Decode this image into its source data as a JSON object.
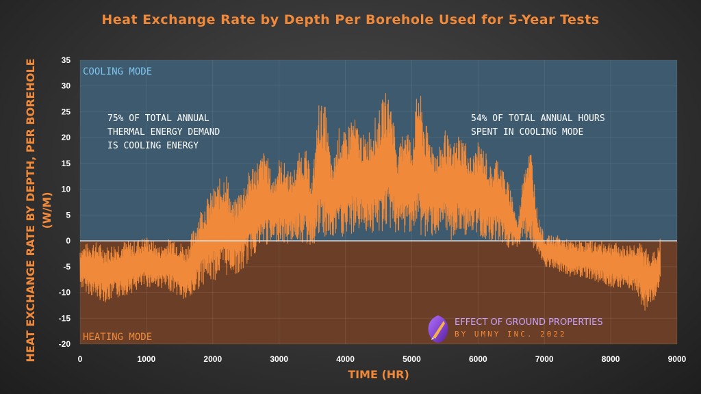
{
  "chart_data": {
    "type": "line",
    "title": "Heat Exchange Rate by Depth Per Borehole Used for 5-Year Tests",
    "xlabel": "TIME (HR)",
    "ylabel": "HEAT EXCHANGE RATE BY DEPTH, PER BOREHOLE",
    "ylabel_unit": "(W/M)",
    "xlim": [
      0,
      9000
    ],
    "ylim": [
      -20,
      35
    ],
    "xticks": [
      0,
      1000,
      2000,
      3000,
      4000,
      5000,
      6000,
      7000,
      8000,
      9000
    ],
    "yticks": [
      -20,
      -15,
      -10,
      -5,
      0,
      5,
      10,
      15,
      20,
      25,
      30,
      35
    ],
    "grid": true,
    "regions": [
      {
        "label": "COOLING MODE",
        "y_range": [
          0,
          35
        ],
        "color": "#3d5a6e"
      },
      {
        "label": "HEATING MODE",
        "y_range": [
          -20,
          0
        ],
        "color": "#6b3f27"
      }
    ],
    "annotations": [
      {
        "lines": [
          "75% OF TOTAL ANNUAL",
          "THERMAL ENERGY DEMAND",
          "IS COOLING ENERGY"
        ]
      },
      {
        "lines": [
          "54% OF TOTAL ANNUAL HOURS",
          "SPENT IN COOLING MODE"
        ]
      }
    ],
    "series": [
      {
        "color": "#f08a3a",
        "envelope_x": [
          0,
          200,
          400,
          600,
          800,
          1000,
          1200,
          1400,
          1600,
          1700,
          1800,
          1900,
          2000,
          2100,
          2200,
          2300,
          2400,
          2500,
          2600,
          2700,
          2800,
          2900,
          3000,
          3100,
          3200,
          3300,
          3400,
          3500,
          3600,
          3700,
          3800,
          3900,
          4000,
          4100,
          4200,
          4300,
          4400,
          4500,
          4600,
          4700,
          4800,
          4900,
          5000,
          5100,
          5200,
          5300,
          5400,
          5500,
          5600,
          5700,
          5800,
          5900,
          6000,
          6100,
          6200,
          6300,
          6400,
          6500,
          6600,
          6700,
          6800,
          6900,
          7000,
          7200,
          7400,
          7600,
          7800,
          8000,
          8200,
          8400,
          8500,
          8600,
          8700,
          8750
        ],
        "envelope_max": [
          -1,
          0,
          -1,
          0,
          0,
          1,
          -1,
          1,
          -1,
          2,
          6,
          8,
          10,
          12,
          14,
          7,
          10,
          12,
          15,
          16,
          18,
          12,
          16,
          15,
          13,
          17,
          18,
          12,
          27,
          26,
          14,
          22,
          21,
          25,
          22,
          20,
          23,
          25,
          29,
          27,
          17,
          24,
          19,
          31,
          23,
          20,
          17,
          22,
          18,
          21,
          20,
          16,
          19,
          18,
          14,
          17,
          13,
          10,
          3,
          16,
          18,
          5,
          1,
          1,
          0,
          0,
          0,
          0,
          -1,
          0,
          -1,
          -2,
          -2,
          1
        ],
        "envelope_min": [
          -9,
          -11,
          -12,
          -11,
          -10,
          -9,
          -9,
          -10,
          -12,
          -11,
          -9,
          -8,
          -8,
          -7,
          -7,
          -6,
          -7,
          -5,
          -3,
          -2,
          -1,
          -1,
          0,
          -1,
          0,
          0,
          -1,
          -1,
          0,
          0,
          0,
          1,
          0,
          1,
          2,
          2,
          1,
          1,
          2,
          2,
          1,
          1,
          2,
          1,
          0,
          1,
          1,
          1,
          0,
          1,
          1,
          1,
          1,
          0,
          0,
          0,
          -1,
          -2,
          -1,
          0,
          -1,
          -3,
          -5,
          -6,
          -7,
          -7,
          -8,
          -9,
          -9,
          -10,
          -14,
          -12,
          -11,
          -8
        ]
      }
    ]
  },
  "branding": {
    "title": "EFFECT OF GROUND PROPERTIES",
    "subtitle": "BY UMNY INC. 2022",
    "icon": "pen-nib-logo-icon"
  }
}
